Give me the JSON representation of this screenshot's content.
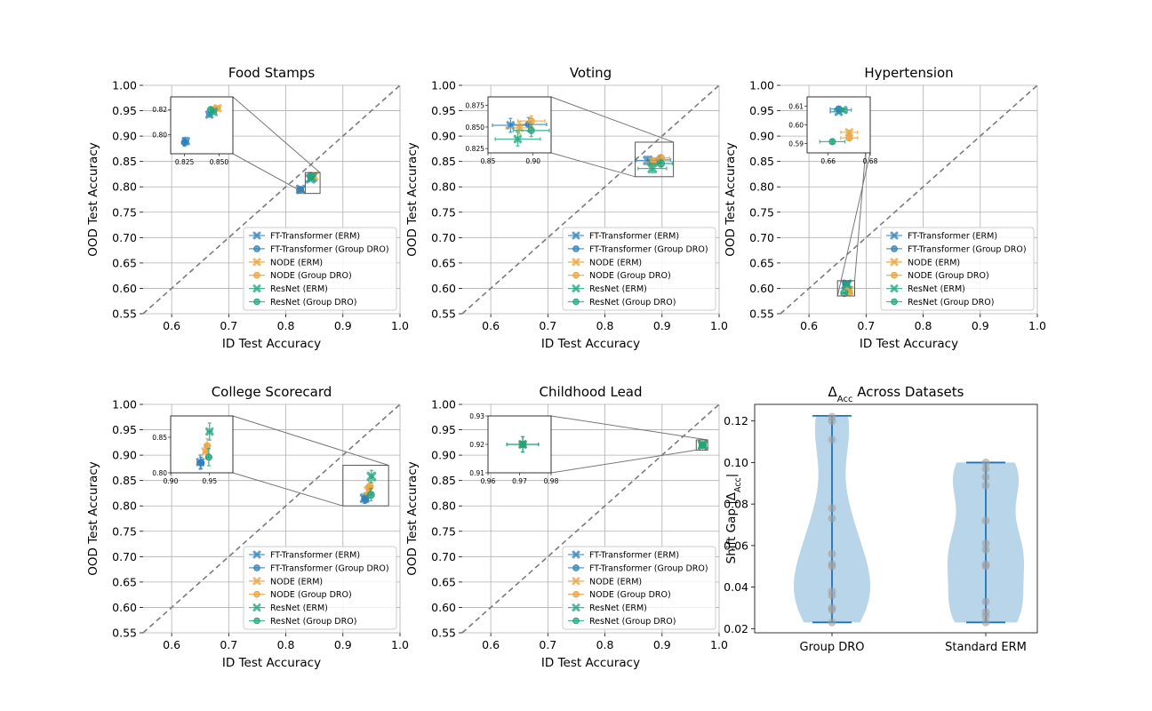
{
  "colors": {
    "ft": "#2f7fb8",
    "node": "#e8a33d",
    "resnet": "#1fa57d",
    "violin_fill": "#a8cbe4",
    "violin_line": "#2272b4",
    "violin_point": "#a0a0a0",
    "diag": "#7a7a7a",
    "grid": "#b0b0b0"
  },
  "legend_labels": [
    "FT-Transformer (ERM)",
    "FT-Transformer (Group DRO)",
    "NODE (ERM)",
    "NODE (Group DRO)",
    "ResNet (ERM)",
    "ResNet (Group DRO)"
  ],
  "chart_data": [
    {
      "type": "scatter",
      "title": "Food Stamps",
      "xlabel": "ID Test Accuracy",
      "ylabel": "OOD Test Accuracy",
      "xlim": [
        0.55,
        1.0
      ],
      "ylim": [
        0.55,
        1.0
      ],
      "xticks": [
        "0.6",
        "0.7",
        "0.8",
        "0.9",
        "1.0"
      ],
      "yticks": [
        "0.55",
        "0.60",
        "0.65",
        "0.70",
        "0.75",
        "0.80",
        "0.85",
        "0.90",
        "0.95",
        "1.00"
      ],
      "grid": true,
      "legend": "lower-right",
      "points": [
        {
          "series": "FT-Transformer (ERM)",
          "x": 0.826,
          "y": 0.795,
          "xerr": 0.002,
          "yerr": 0.003
        },
        {
          "series": "FT-Transformer (Group DRO)",
          "x": 0.825,
          "y": 0.794,
          "xerr": 0.002,
          "yerr": 0.003
        },
        {
          "series": "FT-Transformer (ERM)",
          "x": 0.843,
          "y": 0.816,
          "xerr": 0.002,
          "yerr": 0.002
        },
        {
          "series": "NODE (ERM)",
          "x": 0.849,
          "y": 0.821,
          "xerr": 0.002,
          "yerr": 0.002
        },
        {
          "series": "NODE (Group DRO)",
          "x": 0.847,
          "y": 0.82,
          "xerr": 0.002,
          "yerr": 0.002
        },
        {
          "series": "ResNet (ERM)",
          "x": 0.846,
          "y": 0.818,
          "xerr": 0.002,
          "yerr": 0.002
        },
        {
          "series": "ResNet (Group DRO)",
          "x": 0.844,
          "y": 0.82,
          "xerr": 0.002,
          "yerr": 0.002
        }
      ],
      "inset": {
        "xlim": [
          0.815,
          0.86
        ],
        "ylim": [
          0.785,
          0.83
        ],
        "xticks": [
          0.825,
          0.85
        ],
        "xtick_labels": [
          "0.825",
          "0.850"
        ],
        "yticks": [
          0.8,
          0.82
        ],
        "ytick_labels": [
          "0.80",
          "0.82"
        ],
        "source_box": {
          "xlim": [
            0.834,
            0.86
          ],
          "ylim": [
            0.787,
            0.828
          ]
        }
      }
    },
    {
      "type": "scatter",
      "title": "Voting",
      "xlabel": "ID Test Accuracy",
      "ylabel": "OOD Test Accuracy",
      "xlim": [
        0.55,
        1.0
      ],
      "ylim": [
        0.55,
        1.0
      ],
      "xticks": [
        "0.6",
        "0.7",
        "0.8",
        "0.9",
        "1.0"
      ],
      "yticks": [
        "0.55",
        "0.60",
        "0.65",
        "0.70",
        "0.75",
        "0.80",
        "0.85",
        "0.90",
        "0.95",
        "1.00"
      ],
      "grid": true,
      "legend": "lower-right",
      "points": [
        {
          "series": "FT-Transformer (ERM)",
          "x": 0.875,
          "y": 0.852,
          "xerr": 0.02,
          "yerr": 0.008
        },
        {
          "series": "FT-Transformer (Group DRO)",
          "x": 0.895,
          "y": 0.853,
          "xerr": 0.02,
          "yerr": 0.008
        },
        {
          "series": "NODE (ERM)",
          "x": 0.885,
          "y": 0.849,
          "xerr": 0.015,
          "yerr": 0.007
        },
        {
          "series": "NODE (Group DRO)",
          "x": 0.898,
          "y": 0.857,
          "xerr": 0.015,
          "yerr": 0.006
        },
        {
          "series": "ResNet (ERM)",
          "x": 0.883,
          "y": 0.836,
          "xerr": 0.025,
          "yerr": 0.008
        },
        {
          "series": "ResNet (Group DRO)",
          "x": 0.898,
          "y": 0.846,
          "xerr": 0.02,
          "yerr": 0.007
        }
      ],
      "inset": {
        "xlim": [
          0.85,
          0.92
        ],
        "ylim": [
          0.82,
          0.885
        ],
        "xticks": [
          0.85,
          0.9
        ],
        "xtick_labels": [
          "0.85",
          "0.90"
        ],
        "yticks": [
          0.825,
          0.85,
          0.875
        ],
        "ytick_labels": [
          "0.825",
          "0.850",
          "0.875"
        ],
        "source_box": {
          "xlim": [
            0.853,
            0.92
          ],
          "ylim": [
            0.82,
            0.888
          ]
        }
      }
    },
    {
      "type": "scatter",
      "title": "Hypertension",
      "xlabel": "ID Test Accuracy",
      "ylabel": "OOD Test Accuracy",
      "xlim": [
        0.55,
        1.0
      ],
      "ylim": [
        0.55,
        1.0
      ],
      "xticks": [
        "0.6",
        "0.7",
        "0.8",
        "0.9",
        "1.0"
      ],
      "yticks": [
        "0.55",
        "0.60",
        "0.65",
        "0.70",
        "0.75",
        "0.80",
        "0.85",
        "0.90",
        "0.95",
        "1.00"
      ],
      "grid": true,
      "legend": "lower-right",
      "points": [
        {
          "series": "FT-Transformer (ERM)",
          "x": 0.665,
          "y": 0.607,
          "xerr": 0.004,
          "yerr": 0.001
        },
        {
          "series": "FT-Transformer (Group DRO)",
          "x": 0.665,
          "y": 0.6085,
          "xerr": 0.004,
          "yerr": 0.001
        },
        {
          "series": "NODE (ERM)",
          "x": 0.67,
          "y": 0.596,
          "xerr": 0.004,
          "yerr": 0.001
        },
        {
          "series": "NODE (Group DRO)",
          "x": 0.67,
          "y": 0.593,
          "xerr": 0.004,
          "yerr": 0.001
        },
        {
          "series": "ResNet (ERM)",
          "x": 0.667,
          "y": 0.608,
          "xerr": 0.004,
          "yerr": 0.001
        },
        {
          "series": "ResNet (Group DRO)",
          "x": 0.662,
          "y": 0.591,
          "xerr": 0.006,
          "yerr": 0.001
        }
      ],
      "inset": {
        "xlim": [
          0.65,
          0.68
        ],
        "ylim": [
          0.585,
          0.615
        ],
        "xticks": [
          0.66,
          0.68
        ],
        "xtick_labels": [
          "0.66",
          "0.68"
        ],
        "yticks": [
          0.59,
          0.6,
          0.61
        ],
        "ytick_labels": [
          "0.59",
          "0.60",
          "0.61"
        ],
        "source_box": {
          "xlim": [
            0.65,
            0.68
          ],
          "ylim": [
            0.585,
            0.615
          ]
        }
      }
    },
    {
      "type": "scatter",
      "title": "College Scorecard",
      "xlabel": "ID Test Accuracy",
      "ylabel": "OOD Test Accuracy",
      "xlim": [
        0.55,
        1.0
      ],
      "ylim": [
        0.55,
        1.0
      ],
      "xticks": [
        "0.6",
        "0.7",
        "0.8",
        "0.9",
        "1.0"
      ],
      "yticks": [
        "0.55",
        "0.60",
        "0.65",
        "0.70",
        "0.75",
        "0.80",
        "0.85",
        "0.90",
        "0.95",
        "1.00"
      ],
      "grid": true,
      "legend": "lower-right",
      "points": [
        {
          "series": "FT-Transformer (ERM)",
          "x": 0.938,
          "y": 0.815,
          "xerr": 0.004,
          "yerr": 0.01
        },
        {
          "series": "FT-Transformer (Group DRO)",
          "x": 0.939,
          "y": 0.814,
          "xerr": 0.004,
          "yerr": 0.008
        },
        {
          "series": "NODE (ERM)",
          "x": 0.945,
          "y": 0.83,
          "xerr": 0.003,
          "yerr": 0.01
        },
        {
          "series": "NODE (Group DRO)",
          "x": 0.947,
          "y": 0.838,
          "xerr": 0.003,
          "yerr": 0.01
        },
        {
          "series": "ResNet (ERM)",
          "x": 0.95,
          "y": 0.858,
          "xerr": 0.003,
          "yerr": 0.012
        },
        {
          "series": "ResNet (Group DRO)",
          "x": 0.949,
          "y": 0.822,
          "xerr": 0.003,
          "yerr": 0.012
        }
      ],
      "inset": {
        "xlim": [
          0.9,
          0.98
        ],
        "ylim": [
          0.8,
          0.88
        ],
        "xticks": [
          0.9,
          0.95
        ],
        "xtick_labels": [
          "0.90",
          "0.95"
        ],
        "yticks": [
          0.8,
          0.85
        ],
        "ytick_labels": [
          "0.80",
          "0.85"
        ],
        "source_box": {
          "xlim": [
            0.9,
            0.98
          ],
          "ylim": [
            0.8,
            0.88
          ]
        }
      }
    },
    {
      "type": "scatter",
      "title": "Childhood Lead",
      "xlabel": "ID Test Accuracy",
      "ylabel": "OOD Test Accuracy",
      "xlim": [
        0.55,
        1.0
      ],
      "ylim": [
        0.55,
        1.0
      ],
      "xticks": [
        "0.6",
        "0.7",
        "0.8",
        "0.9",
        "1.0"
      ],
      "yticks": [
        "0.55",
        "0.60",
        "0.65",
        "0.70",
        "0.75",
        "0.80",
        "0.85",
        "0.90",
        "0.95",
        "1.00"
      ],
      "grid": true,
      "legend": "lower-right",
      "points": [
        {
          "series": "FT-Transformer (ERM)",
          "x": 0.971,
          "y": 0.92,
          "xerr": 0.001,
          "yerr": 0.001
        },
        {
          "series": "FT-Transformer (Group DRO)",
          "x": 0.971,
          "y": 0.92,
          "xerr": 0.001,
          "yerr": 0.001
        },
        {
          "series": "NODE (ERM)",
          "x": 0.971,
          "y": 0.92,
          "xerr": 0.001,
          "yerr": 0.001
        },
        {
          "series": "NODE (Group DRO)",
          "x": 0.971,
          "y": 0.92,
          "xerr": 0.001,
          "yerr": 0.001
        },
        {
          "series": "ResNet (ERM)",
          "x": 0.971,
          "y": 0.92,
          "xerr": 0.005,
          "yerr": 0.0027
        },
        {
          "series": "ResNet (Group DRO)",
          "x": 0.971,
          "y": 0.92,
          "xerr": 0.005,
          "yerr": 0.0027
        }
      ],
      "inset": {
        "xlim": [
          0.96,
          0.98
        ],
        "ylim": [
          0.91,
          0.93
        ],
        "xticks": [
          0.96,
          0.97,
          0.98
        ],
        "xtick_labels": [
          "0.96",
          "0.97",
          "0.98"
        ],
        "yticks": [
          0.91,
          0.92,
          0.93
        ],
        "ytick_labels": [
          "0.91",
          "0.92",
          "0.93"
        ],
        "source_box": {
          "xlim": [
            0.96,
            0.98
          ],
          "ylim": [
            0.91,
            0.93
          ]
        }
      }
    },
    {
      "type": "violin",
      "title": "Δ",
      "title_sub": "Acc",
      "title_rest": " Across Datasets",
      "ylabel": "Shift Gap |Δ",
      "ylabel_sub": "Acc",
      "ylabel_rest": "|",
      "categories": [
        "Group DRO",
        "Standard ERM"
      ],
      "ylim": [
        0.018,
        0.128
      ],
      "yticks": [
        "0.02",
        "0.04",
        "0.06",
        "0.08",
        "0.10",
        "0.12"
      ],
      "grid": false,
      "series": [
        {
          "name": "Group DRO",
          "values": [
            0.023,
            0.029,
            0.03,
            0.036,
            0.038,
            0.05,
            0.051,
            0.056,
            0.073,
            0.078,
            0.111,
            0.12,
            0.122
          ],
          "min": 0.023,
          "max": 0.1225
        },
        {
          "name": "Standard ERM",
          "values": [
            0.023,
            0.026,
            0.028,
            0.033,
            0.05,
            0.051,
            0.058,
            0.061,
            0.072,
            0.089,
            0.093,
            0.097,
            0.1
          ],
          "min": 0.023,
          "max": 0.1
        }
      ]
    }
  ]
}
